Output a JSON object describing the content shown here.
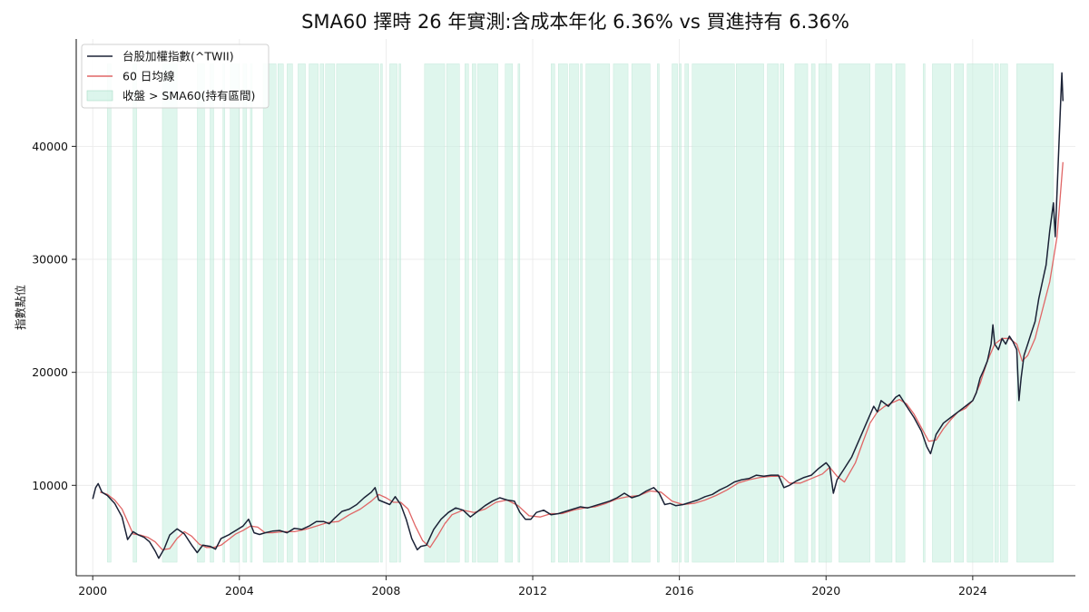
{
  "chart_data": {
    "type": "line",
    "title": "SMA60 擇時 26 年實測:含成本年化 6.36% vs 買進持有 6.36%",
    "xlabel": "",
    "ylabel": "指數點位",
    "xlim": [
      1999.55,
      2026.8
    ],
    "ylim": [
      2000,
      49500
    ],
    "x_ticks": [
      2000,
      2004,
      2008,
      2012,
      2016,
      2020,
      2024
    ],
    "x_tick_labels": [
      "2000",
      "2004",
      "2008",
      "2012",
      "2016",
      "2020",
      "2024"
    ],
    "y_ticks": [
      10000,
      20000,
      30000,
      40000
    ],
    "y_tick_labels": [
      "10000",
      "20000",
      "30000",
      "40000"
    ],
    "grid": true,
    "legend_position": "top-left",
    "colors": {
      "index": "#1b2236",
      "sma": "#e06666",
      "band": "#c5eedf"
    },
    "legend": [
      "台股加權指數(^TWII)",
      "60 日均線",
      "收盤 > SMA60(持有區間)"
    ],
    "series": [
      {
        "name": "台股加權指數(^TWII)",
        "x": [
          2000.0,
          2000.08,
          2000.15,
          2000.25,
          2000.4,
          2000.6,
          2000.8,
          2000.95,
          2001.1,
          2001.25,
          2001.4,
          2001.55,
          2001.7,
          2001.8,
          2001.95,
          2002.1,
          2002.3,
          2002.5,
          2002.7,
          2002.85,
          2003.0,
          2003.2,
          2003.35,
          2003.5,
          2003.7,
          2003.9,
          2004.1,
          2004.25,
          2004.4,
          2004.55,
          2004.7,
          2004.9,
          2005.1,
          2005.3,
          2005.5,
          2005.7,
          2005.9,
          2006.1,
          2006.3,
          2006.45,
          2006.6,
          2006.8,
          2007.0,
          2007.2,
          2007.4,
          2007.6,
          2007.7,
          2007.8,
          2007.95,
          2008.1,
          2008.25,
          2008.4,
          2008.55,
          2008.7,
          2008.85,
          2008.95,
          2009.1,
          2009.3,
          2009.5,
          2009.7,
          2009.9,
          2010.1,
          2010.3,
          2010.5,
          2010.7,
          2010.9,
          2011.1,
          2011.3,
          2011.5,
          2011.65,
          2011.8,
          2011.95,
          2012.1,
          2012.3,
          2012.5,
          2012.7,
          2012.9,
          2013.1,
          2013.3,
          2013.5,
          2013.7,
          2013.9,
          2014.1,
          2014.3,
          2014.5,
          2014.7,
          2014.9,
          2015.1,
          2015.3,
          2015.45,
          2015.6,
          2015.75,
          2015.9,
          2016.1,
          2016.3,
          2016.5,
          2016.7,
          2016.9,
          2017.1,
          2017.3,
          2017.5,
          2017.7,
          2017.9,
          2018.1,
          2018.3,
          2018.5,
          2018.7,
          2018.85,
          2019.0,
          2019.2,
          2019.4,
          2019.6,
          2019.8,
          2020.0,
          2020.1,
          2020.2,
          2020.3,
          2020.5,
          2020.7,
          2020.9,
          2021.1,
          2021.3,
          2021.4,
          2021.5,
          2021.7,
          2021.9,
          2022.0,
          2022.2,
          2022.4,
          2022.6,
          2022.75,
          2022.85,
          2023.0,
          2023.2,
          2023.4,
          2023.6,
          2023.8,
          2024.0,
          2024.1,
          2024.2,
          2024.3,
          2024.4,
          2024.5,
          2024.55,
          2024.6,
          2024.7,
          2024.8,
          2024.9,
          2025.0,
          2025.1,
          2025.2,
          2025.26,
          2025.32,
          2025.4,
          2025.5,
          2025.6,
          2025.7,
          2025.8,
          2025.9,
          2026.0,
          2026.1,
          2026.2,
          2026.25,
          2026.3,
          2026.35,
          2026.4,
          2026.43,
          2026.46
        ],
        "y": [
          8800,
          9800,
          10150,
          9400,
          9100,
          8400,
          7200,
          5200,
          5900,
          5600,
          5400,
          5000,
          4200,
          3550,
          4400,
          5600,
          6150,
          5700,
          4700,
          4050,
          4700,
          4600,
          4350,
          5300,
          5600,
          6000,
          6400,
          7000,
          5800,
          5650,
          5800,
          5950,
          6000,
          5800,
          6200,
          6100,
          6400,
          6800,
          6800,
          6600,
          7100,
          7700,
          7900,
          8300,
          8900,
          9400,
          9800,
          8700,
          8500,
          8300,
          9000,
          8300,
          7000,
          5300,
          4300,
          4600,
          4700,
          6100,
          7000,
          7600,
          8000,
          7800,
          7200,
          7700,
          8200,
          8600,
          8900,
          8700,
          8600,
          7600,
          7000,
          7000,
          7600,
          7800,
          7400,
          7500,
          7700,
          7900,
          8100,
          8000,
          8200,
          8400,
          8600,
          8900,
          9300,
          8900,
          9100,
          9500,
          9800,
          9300,
          8300,
          8400,
          8200,
          8300,
          8500,
          8700,
          9000,
          9200,
          9600,
          9900,
          10300,
          10500,
          10600,
          10900,
          10800,
          10900,
          10900,
          9800,
          10000,
          10400,
          10700,
          10900,
          11500,
          12000,
          11600,
          9300,
          10500,
          11500,
          12500,
          14000,
          15500,
          17000,
          16500,
          17500,
          17000,
          17800,
          18000,
          17000,
          16000,
          14800,
          13400,
          12800,
          14500,
          15500,
          16000,
          16500,
          17000,
          17500,
          18200,
          19500,
          20200,
          21000,
          22500,
          24200,
          22500,
          22000,
          23000,
          22500,
          23200,
          22700,
          22000,
          17500,
          19500,
          21500,
          22500,
          23500,
          24500,
          26500,
          28000,
          29500,
          32500,
          35000,
          32000,
          36000,
          40000,
          44000,
          46500,
          44000
        ]
      },
      {
        "name": "60 日均線",
        "x": [
          2000.2,
          2000.4,
          2000.6,
          2000.8,
          2000.95,
          2001.1,
          2001.3,
          2001.5,
          2001.7,
          2001.9,
          2002.1,
          2002.3,
          2002.5,
          2002.7,
          2002.9,
          2003.1,
          2003.3,
          2003.5,
          2003.7,
          2003.9,
          2004.1,
          2004.3,
          2004.5,
          2004.7,
          2004.9,
          2005.2,
          2005.5,
          2005.8,
          2006.1,
          2006.4,
          2006.7,
          2007.0,
          2007.3,
          2007.6,
          2007.8,
          2008.0,
          2008.2,
          2008.4,
          2008.6,
          2008.8,
          2009.0,
          2009.2,
          2009.4,
          2009.6,
          2009.8,
          2010.1,
          2010.4,
          2010.7,
          2011.0,
          2011.3,
          2011.6,
          2011.9,
          2012.2,
          2012.5,
          2012.8,
          2013.1,
          2013.4,
          2013.7,
          2014.0,
          2014.3,
          2014.6,
          2014.9,
          2015.2,
          2015.5,
          2015.8,
          2016.1,
          2016.4,
          2016.7,
          2017.0,
          2017.3,
          2017.6,
          2017.9,
          2018.2,
          2018.5,
          2018.8,
          2019.0,
          2019.3,
          2019.6,
          2019.9,
          2020.1,
          2020.3,
          2020.5,
          2020.8,
          2021.0,
          2021.2,
          2021.4,
          2021.6,
          2021.8,
          2022.0,
          2022.2,
          2022.4,
          2022.6,
          2022.8,
          2023.0,
          2023.2,
          2023.4,
          2023.6,
          2023.8,
          2024.0,
          2024.2,
          2024.4,
          2024.6,
          2024.8,
          2025.0,
          2025.2,
          2025.35,
          2025.5,
          2025.7,
          2025.9,
          2026.1,
          2026.3,
          2026.46
        ],
        "y": [
          9400,
          9200,
          8700,
          7900,
          6800,
          5700,
          5600,
          5400,
          5000,
          4300,
          4400,
          5300,
          5900,
          5500,
          4800,
          4500,
          4500,
          4700,
          5200,
          5700,
          6000,
          6400,
          6300,
          5800,
          5800,
          5900,
          5900,
          6100,
          6400,
          6700,
          6800,
          7400,
          7900,
          8600,
          9200,
          8900,
          8500,
          8500,
          7900,
          6400,
          5100,
          4500,
          5500,
          6600,
          7400,
          7800,
          7600,
          7900,
          8500,
          8700,
          8200,
          7300,
          7200,
          7500,
          7500,
          7800,
          8000,
          8100,
          8400,
          8800,
          9000,
          9100,
          9500,
          9400,
          8600,
          8300,
          8400,
          8700,
          9100,
          9600,
          10200,
          10500,
          10700,
          10800,
          10800,
          10200,
          10200,
          10600,
          11000,
          11600,
          10800,
          10300,
          12000,
          13800,
          15500,
          16500,
          17000,
          17300,
          17600,
          17200,
          16300,
          15100,
          13900,
          14000,
          15000,
          15800,
          16500,
          16800,
          17500,
          19000,
          21000,
          22500,
          23000,
          23000,
          22500,
          21000,
          21500,
          23000,
          25500,
          28000,
          32000,
          38600
        ]
      }
    ],
    "holding_bands": [
      [
        2000.4,
        2000.5
      ],
      [
        2001.1,
        2001.2
      ],
      [
        2001.9,
        2002.3
      ],
      [
        2002.85,
        2003.05
      ],
      [
        2003.2,
        2003.3
      ],
      [
        2003.55,
        2003.6
      ],
      [
        2003.75,
        2004.0
      ],
      [
        2004.1,
        2004.2
      ],
      [
        2004.3,
        2004.35
      ],
      [
        2004.65,
        2005.0
      ],
      [
        2005.05,
        2005.2
      ],
      [
        2005.3,
        2005.45
      ],
      [
        2005.6,
        2005.8
      ],
      [
        2005.9,
        2006.15
      ],
      [
        2006.2,
        2006.3
      ],
      [
        2006.35,
        2006.6
      ],
      [
        2006.65,
        2007.8
      ],
      [
        2007.85,
        2007.9
      ],
      [
        2008.1,
        2008.3
      ],
      [
        2008.35,
        2008.4
      ],
      [
        2009.05,
        2009.6
      ],
      [
        2009.65,
        2010.0
      ],
      [
        2010.15,
        2010.25
      ],
      [
        2010.35,
        2010.45
      ],
      [
        2010.5,
        2011.05
      ],
      [
        2011.25,
        2011.45
      ],
      [
        2011.6,
        2011.65
      ],
      [
        2012.5,
        2012.6
      ],
      [
        2012.7,
        2012.95
      ],
      [
        2013.0,
        2013.25
      ],
      [
        2013.3,
        2013.35
      ],
      [
        2013.45,
        2014.1
      ],
      [
        2014.2,
        2014.6
      ],
      [
        2014.7,
        2015.2
      ],
      [
        2015.4,
        2015.45
      ],
      [
        2015.8,
        2015.95
      ],
      [
        2016.0,
        2016.05
      ],
      [
        2016.15,
        2016.25
      ],
      [
        2016.35,
        2017.5
      ],
      [
        2017.55,
        2018.3
      ],
      [
        2018.4,
        2018.7
      ],
      [
        2018.75,
        2018.85
      ],
      [
        2019.15,
        2019.5
      ],
      [
        2019.6,
        2019.7
      ],
      [
        2019.8,
        2020.15
      ],
      [
        2020.35,
        2021.2
      ],
      [
        2021.35,
        2021.8
      ],
      [
        2021.9,
        2022.15
      ],
      [
        2022.65,
        2022.7
      ],
      [
        2022.9,
        2023.4
      ],
      [
        2023.5,
        2023.75
      ],
      [
        2023.85,
        2024.55
      ],
      [
        2024.6,
        2024.7
      ],
      [
        2024.75,
        2024.95
      ],
      [
        2025.2,
        2026.2
      ]
    ]
  }
}
